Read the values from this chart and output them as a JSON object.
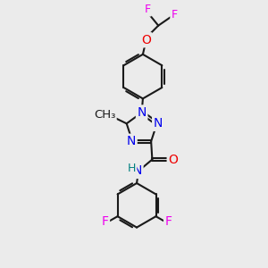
{
  "background_color": "#ebebeb",
  "bond_color": "#1a1a1a",
  "N_color": "#0000ee",
  "O_color": "#ee0000",
  "F_color": "#ee00ee",
  "H_color": "#008080",
  "line_width": 1.5,
  "font_size": 9,
  "xlim": [
    0,
    10
  ],
  "ylim": [
    0,
    12
  ]
}
